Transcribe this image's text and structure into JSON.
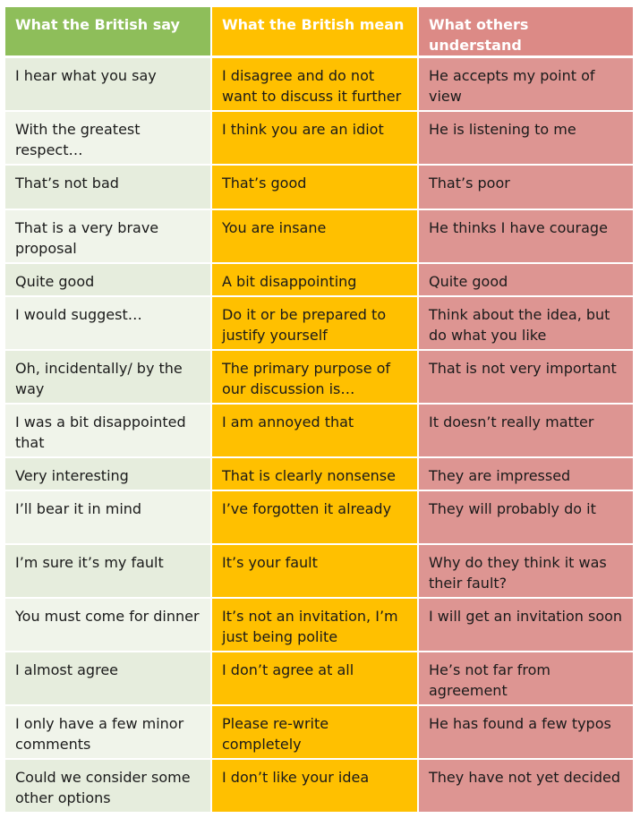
{
  "columns": [
    {
      "label": "What the British say",
      "color": "#8ebe5a"
    },
    {
      "label": "What the British mean",
      "color": "#ffc000"
    },
    {
      "label": "What others understand",
      "color": "#dc8a86"
    }
  ],
  "rows": [
    {
      "say": "I hear what you say",
      "mean": "I disagree and do not want to discuss it further",
      "understand": "He accepts my point of view"
    },
    {
      "say": "With the greatest respect…",
      "mean": "I think you are an idiot",
      "understand": "He is listening to me"
    },
    {
      "say": "That’s not bad",
      "mean": "That’s good",
      "understand": "That’s poor"
    },
    {
      "say": "That is a very brave proposal",
      "mean": "You are insane",
      "understand": "He thinks I have courage"
    },
    {
      "say": "Quite good",
      "mean": "A bit disappointing",
      "understand": "Quite good"
    },
    {
      "say": "I would suggest…",
      "mean": "Do it or be prepared to justify yourself",
      "understand": "Think about the idea, but do what you like"
    },
    {
      "say": "Oh, incidentally/ by the way",
      "mean": "The primary purpose of our discussion is…",
      "understand": "That is not very important"
    },
    {
      "say": "I was a bit disappointed that",
      "mean": "I am annoyed that",
      "understand": "It doesn’t really matter"
    },
    {
      "say": "Very interesting",
      "mean": "That is clearly nonsense",
      "understand": "They are impressed"
    },
    {
      "say": "I’ll bear it in mind",
      "mean": "I’ve forgotten it already",
      "understand": "They will probably do it"
    },
    {
      "say": "I’m sure it’s my fault",
      "mean": "It’s your fault",
      "understand": "Why do they think it was their fault?"
    },
    {
      "say": "You must come for dinner",
      "mean": "It’s not an invitation, I’m just being polite",
      "understand": "I will get an invitation soon"
    },
    {
      "say": "I almost agree",
      "mean": "I don’t agree at all",
      "understand": "He’s not far from agreement"
    },
    {
      "say": "I only have a few minor comments",
      "mean": "Please re-write completely",
      "understand": "He has found a few typos"
    },
    {
      "say": "Could we consider some other options",
      "mean": "I don’t like your idea",
      "understand": "They have not yet decided"
    }
  ]
}
